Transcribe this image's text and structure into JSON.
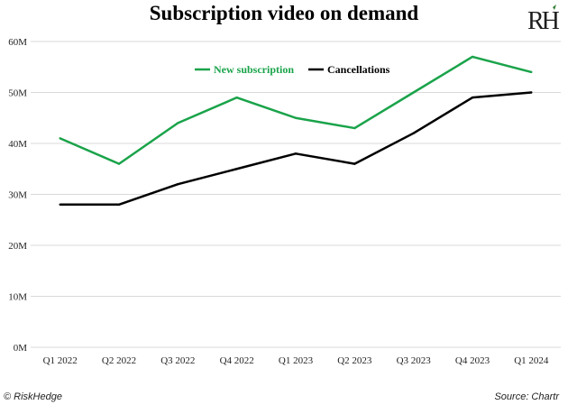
{
  "brand": {
    "logo_text": "RH",
    "copyright": "© RiskHedge",
    "source": "Source: Chartr"
  },
  "colors": {
    "new_subscription": "#1aa34a",
    "cancellations": "#000000",
    "grid": "#d9d9d9",
    "logo_accent": "#2e7d32"
  },
  "chart_data": {
    "type": "line",
    "title": "Subscription video on demand",
    "categories": [
      "Q1 2022",
      "Q2 2022",
      "Q3 2022",
      "Q4 2022",
      "Q1 2023",
      "Q2 2023",
      "Q3 2023",
      "Q4 2023",
      "Q1 2024"
    ],
    "series": [
      {
        "name": "New subscription",
        "values": [
          41,
          36,
          44,
          49,
          45,
          43,
          50,
          57,
          54
        ]
      },
      {
        "name": "Cancellations",
        "values": [
          28,
          28,
          32,
          35,
          38,
          36,
          42,
          49,
          50
        ]
      }
    ],
    "y_ticks": [
      "0M",
      "10M",
      "20M",
      "30M",
      "40M",
      "50M",
      "60M"
    ],
    "ylim": [
      0,
      60
    ],
    "grid": true,
    "legend_position": "top-right"
  }
}
